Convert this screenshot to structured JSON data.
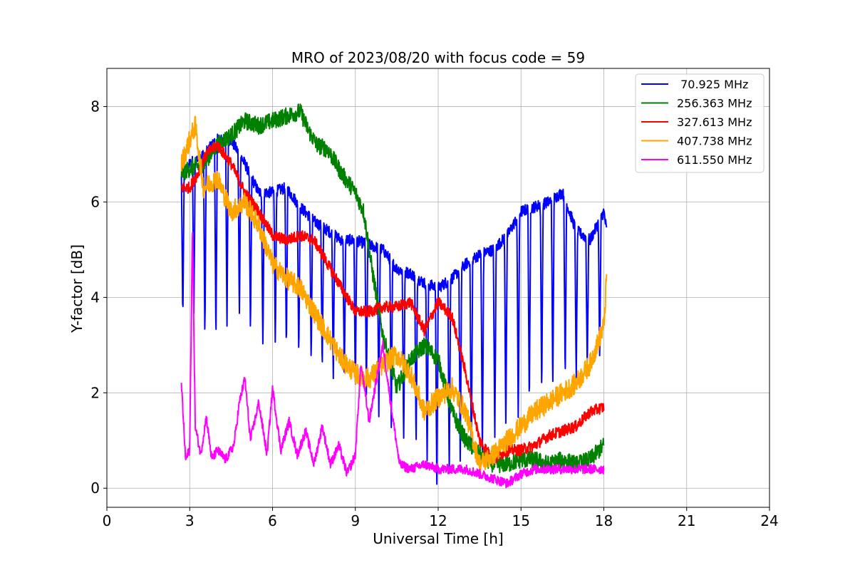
{
  "chart_data": {
    "type": "line",
    "title": "MRO of 2023/08/20 with focus code = 59",
    "xlabel": "Universal Time [h]",
    "ylabel": "Y-factor [dB]",
    "xlim": [
      0,
      24
    ],
    "ylim": [
      -0.4,
      8.8
    ],
    "xticks": [
      0,
      3,
      6,
      9,
      12,
      15,
      18,
      21,
      24
    ],
    "yticks": [
      0,
      2,
      4,
      6,
      8
    ],
    "xtick_labels": [
      "0",
      "3",
      "6",
      "9",
      "12",
      "15",
      "18",
      "21",
      "24"
    ],
    "ytick_labels": [
      "0",
      "2",
      "4",
      "6",
      "8"
    ],
    "grid": true,
    "legend_position": "top-right",
    "series": [
      {
        "name": " 70.925 MHz",
        "color": "#0000ff",
        "x": [
          2.7,
          3.0,
          3.5,
          4.0,
          4.5,
          5.0,
          5.5,
          6.0,
          6.5,
          7.0,
          7.5,
          8.0,
          8.5,
          9.0,
          9.5,
          10.0,
          10.5,
          11.0,
          11.5,
          12.0,
          12.5,
          13.0,
          13.5,
          14.0,
          14.5,
          15.0,
          15.5,
          16.0,
          16.5,
          17.0,
          17.5,
          18.0,
          18.1
        ],
        "y": [
          6.5,
          6.8,
          7.0,
          7.3,
          7.3,
          6.8,
          6.2,
          6.2,
          6.3,
          5.9,
          5.6,
          5.4,
          5.2,
          5.2,
          5.1,
          5.0,
          4.6,
          4.5,
          4.3,
          4.2,
          4.4,
          4.7,
          4.9,
          5.0,
          5.3,
          5.8,
          5.9,
          6.0,
          6.2,
          5.4,
          5.2,
          5.8,
          5.4
        ],
        "dips": [
          [
            2.75,
            3.5
          ],
          [
            3.15,
            3.6
          ],
          [
            3.55,
            3.1
          ],
          [
            3.95,
            3.0
          ],
          [
            4.35,
            3.4
          ],
          [
            4.8,
            3.6
          ],
          [
            5.2,
            3.2
          ],
          [
            5.65,
            2.9
          ],
          [
            6.1,
            3.0
          ],
          [
            6.5,
            2.8
          ],
          [
            6.95,
            2.7
          ],
          [
            7.4,
            2.6
          ],
          [
            7.8,
            2.4
          ],
          [
            8.2,
            2.3
          ],
          [
            8.6,
            2.2
          ],
          [
            9.0,
            2.0
          ],
          [
            9.4,
            1.9
          ],
          [
            9.85,
            1.5
          ],
          [
            10.3,
            1.2
          ],
          [
            10.75,
            0.9
          ],
          [
            11.2,
            0.8
          ],
          [
            11.6,
            0.5
          ],
          [
            11.95,
            0.0
          ],
          [
            12.4,
            0.2
          ],
          [
            12.8,
            0.4
          ],
          [
            13.2,
            0.5
          ],
          [
            13.6,
            0.6
          ],
          [
            14.05,
            0.9
          ],
          [
            14.45,
            1.2
          ],
          [
            14.9,
            1.4
          ],
          [
            15.3,
            1.6
          ],
          [
            15.75,
            1.9
          ],
          [
            16.15,
            2.0
          ],
          [
            16.6,
            2.2
          ],
          [
            17.0,
            2.3
          ],
          [
            17.4,
            2.4
          ],
          [
            17.85,
            2.6
          ]
        ]
      },
      {
        "name": "256.363 MHz",
        "color": "#008000",
        "x": [
          2.7,
          3.0,
          3.5,
          4.0,
          4.5,
          5.0,
          5.5,
          6.0,
          6.5,
          7.0,
          7.3,
          7.6,
          8.0,
          8.5,
          9.0,
          9.3,
          9.6,
          10.0,
          10.5,
          11.0,
          11.5,
          12.0,
          12.5,
          13.0,
          13.5,
          14.0,
          14.5,
          15.0,
          15.5,
          16.0,
          16.5,
          17.0,
          17.5,
          18.0
        ],
        "y": [
          6.6,
          6.7,
          6.8,
          7.2,
          7.4,
          7.7,
          7.6,
          7.7,
          7.8,
          7.9,
          7.5,
          7.2,
          7.1,
          6.6,
          6.2,
          5.8,
          4.6,
          3.2,
          2.1,
          2.7,
          3.0,
          2.7,
          1.6,
          1.0,
          0.7,
          0.5,
          0.5,
          0.6,
          0.6,
          0.5,
          0.6,
          0.5,
          0.6,
          0.9
        ]
      },
      {
        "name": "327.613 MHz",
        "color": "#ff0000",
        "x": [
          2.7,
          3.0,
          3.3,
          3.6,
          4.0,
          4.5,
          5.0,
          5.5,
          6.0,
          6.5,
          7.0,
          7.5,
          8.0,
          8.5,
          9.0,
          9.5,
          10.0,
          10.5,
          11.0,
          11.5,
          12.0,
          12.5,
          13.0,
          13.5,
          14.0,
          14.5,
          15.0,
          15.5,
          16.0,
          16.5,
          17.0,
          17.5,
          18.0
        ],
        "y": [
          6.3,
          6.3,
          6.6,
          7.0,
          7.2,
          6.8,
          6.2,
          5.8,
          5.3,
          5.2,
          5.3,
          5.2,
          4.7,
          4.2,
          3.7,
          3.7,
          3.8,
          3.8,
          3.9,
          3.3,
          3.9,
          3.6,
          2.4,
          1.0,
          0.6,
          0.8,
          0.8,
          0.9,
          1.1,
          1.2,
          1.3,
          1.6,
          1.7
        ]
      },
      {
        "name": "407.738 MHz",
        "color": "#ffa500",
        "x": [
          2.7,
          3.0,
          3.2,
          3.5,
          4.0,
          4.5,
          5.0,
          5.5,
          6.0,
          6.5,
          7.0,
          7.5,
          8.0,
          8.5,
          9.0,
          9.5,
          10.0,
          10.5,
          11.0,
          11.5,
          12.0,
          12.5,
          13.0,
          13.5,
          14.0,
          14.5,
          15.0,
          15.5,
          16.0,
          16.5,
          17.0,
          17.5,
          18.0,
          18.1
        ],
        "y": [
          6.8,
          7.3,
          7.6,
          6.3,
          6.5,
          5.8,
          6.0,
          5.5,
          4.7,
          4.4,
          4.2,
          3.7,
          3.2,
          2.7,
          2.4,
          2.3,
          2.6,
          2.8,
          2.4,
          1.6,
          1.9,
          2.1,
          1.6,
          0.5,
          0.7,
          1.0,
          1.3,
          1.6,
          1.8,
          2.0,
          2.2,
          2.6,
          3.4,
          4.4
        ]
      },
      {
        "name": "611.550 MHz",
        "color": "#ff00ff",
        "x": [
          2.7,
          2.85,
          3.0,
          3.1,
          3.2,
          3.4,
          3.6,
          3.8,
          4.0,
          4.3,
          4.6,
          4.8,
          5.0,
          5.2,
          5.5,
          5.8,
          6.0,
          6.3,
          6.6,
          6.9,
          7.2,
          7.5,
          7.8,
          8.1,
          8.4,
          8.7,
          9.0,
          9.2,
          9.5,
          9.8,
          10.0,
          10.3,
          10.6,
          11.0,
          11.5,
          12.0,
          12.5,
          13.0,
          13.5,
          14.0,
          14.5,
          15.0,
          15.5,
          16.0,
          16.5,
          17.0,
          17.5,
          18.0
        ],
        "y": [
          2.2,
          0.6,
          0.8,
          5.5,
          1.3,
          0.7,
          1.5,
          0.6,
          0.8,
          0.6,
          0.9,
          1.8,
          2.3,
          1.0,
          1.8,
          0.7,
          2.1,
          0.8,
          1.4,
          0.7,
          1.2,
          0.5,
          1.3,
          0.5,
          0.9,
          0.3,
          0.7,
          2.6,
          1.4,
          2.4,
          3.0,
          1.7,
          0.5,
          0.4,
          0.5,
          0.4,
          0.4,
          0.4,
          0.3,
          0.2,
          0.1,
          0.3,
          0.4,
          0.4,
          0.4,
          0.4,
          0.4,
          0.4
        ]
      }
    ]
  }
}
